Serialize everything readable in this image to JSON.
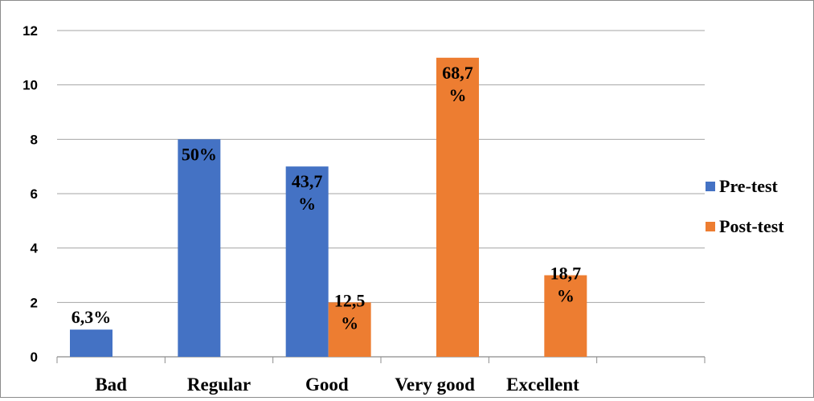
{
  "chart_data": {
    "type": "bar",
    "categories": [
      "Bad",
      "Regular",
      "Good",
      "Very good",
      "Excellent"
    ],
    "series": [
      {
        "name": "Pre-test",
        "color": "#4472C4",
        "values": [
          1,
          8,
          7,
          0,
          0
        ],
        "labels": [
          "6,3%",
          "50%",
          "43,7\n%",
          "",
          ""
        ]
      },
      {
        "name": "Post-test",
        "color": "#ED7D31",
        "values": [
          0,
          0,
          2,
          11,
          3
        ],
        "labels": [
          "",
          "",
          "12,5\n%",
          "68,7\n%",
          "18,7\n%"
        ]
      }
    ],
    "ylim": [
      0,
      12
    ],
    "yticks": [
      0,
      2,
      4,
      6,
      8,
      10,
      12
    ],
    "grid": true,
    "legend_position": "right"
  }
}
